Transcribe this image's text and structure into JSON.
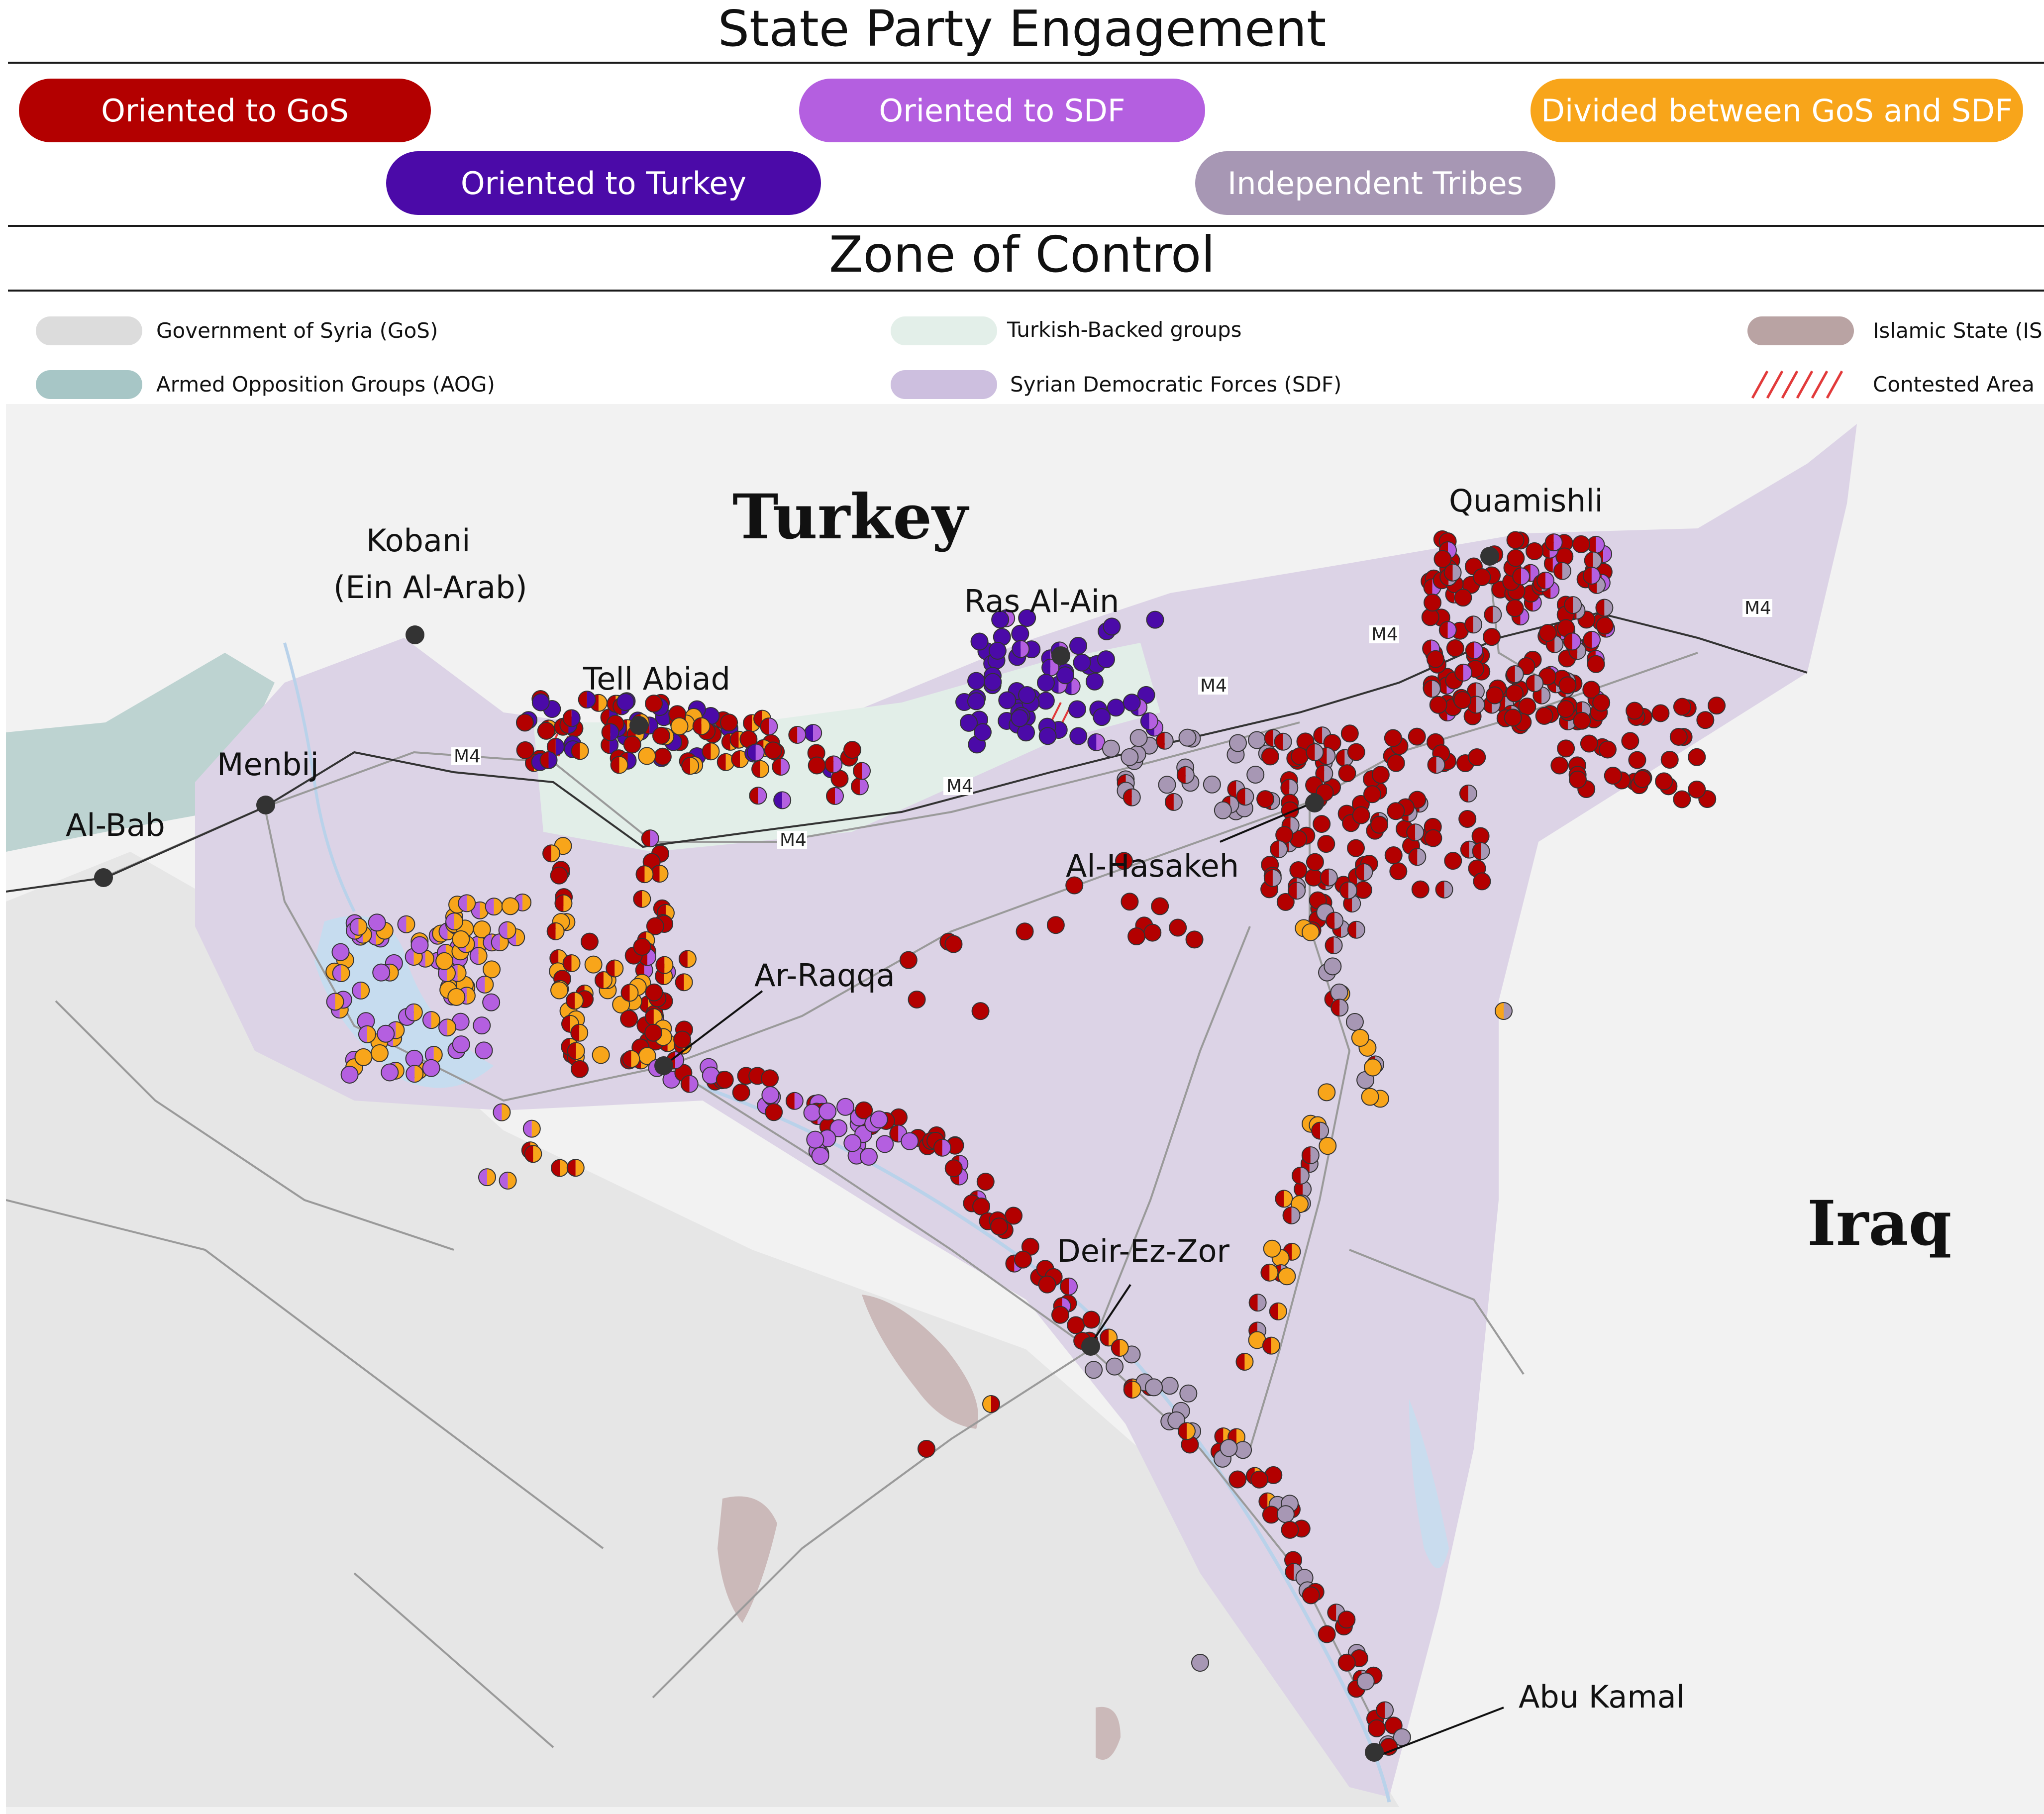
{
  "headers": {
    "engagement_title": "State Party Engagement",
    "control_title": "Zone of Control"
  },
  "engagement": [
    {
      "label": "Oriented to GoS",
      "color": "#b30000"
    },
    {
      "label": "Oriented to SDF",
      "color": "#b45fe0"
    },
    {
      "label": "Divided between GoS and SDF",
      "color": "#f8a51a"
    },
    {
      "label": "Oriented to Turkey",
      "color": "#4b0aa8"
    },
    {
      "label": "Independent Tribes",
      "color": "#a797b4"
    }
  ],
  "zones": [
    {
      "label": "Government of Syria (GoS)",
      "color": "#dcdcdc"
    },
    {
      "label": "Turkish-Backed groups",
      "color": "#e3efe9"
    },
    {
      "label": "Islamic State (IS)",
      "color": "#b9a3a3"
    },
    {
      "label": "Armed Opposition Groups (AOG)",
      "color": "#a7c6c6"
    },
    {
      "label": "Syrian Democratic Forces (SDF)",
      "color": "#cdbfdf"
    },
    {
      "label": "Contested Area",
      "color": "#e23a3a"
    }
  ],
  "map": {
    "countries": {
      "turkey": "Turkey",
      "iraq": "Iraq"
    },
    "cities": {
      "kobani_1": "Kobani",
      "kobani_2": "(Ein Al-Arab)",
      "menbij": "Menbij",
      "al_bab": "Al-Bab",
      "tell_abiad": "Tell Abiad",
      "ras_al_ain": "Ras Al-Ain",
      "quamishli": "Quamishli",
      "al_hasakeh": "Al-Hasakeh",
      "ar_raqqa": "Ar-Raqqa",
      "deir_ez_zor": "Deir-Ez-Zor",
      "abu_kamal": "Abu Kamal"
    },
    "road": "M4"
  }
}
